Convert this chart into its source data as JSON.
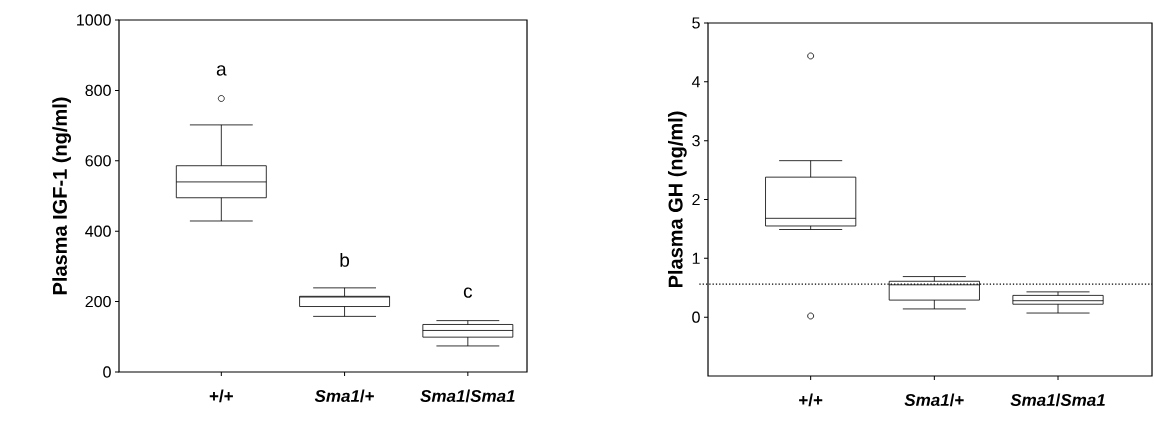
{
  "chart_data": [
    {
      "type": "box",
      "ylabel": "Plasma IGF-1 (ng/ml)",
      "categories": [
        "+/+",
        "*Sma1*/+",
        "*Sma1*/*Sma1*"
      ],
      "boxes": [
        {
          "low": 429,
          "q1": 495,
          "median": 540,
          "q3": 586,
          "high": 702,
          "outliers": [
            777
          ]
        },
        {
          "low": 158,
          "q1": 186,
          "median": 213,
          "q3": 215,
          "high": 239
        },
        {
          "low": 74,
          "q1": 99,
          "median": 118,
          "q3": 135,
          "high": 146
        }
      ],
      "ylim": [
        0,
        1000
      ],
      "yticks": [
        0,
        200,
        400,
        600,
        800,
        1000
      ],
      "annotations": [
        "a",
        "b",
        "c"
      ]
    },
    {
      "type": "box",
      "ylabel": "Plasma GH (ng/ml)",
      "categories": [
        "+/+",
        "*Sma1*/+",
        "*Sma1*/*Sma1*"
      ],
      "boxes": [
        {
          "low": 1.49,
          "q1": 1.55,
          "median": 1.68,
          "q3": 2.38,
          "high": 2.66,
          "outliers": [
            4.44,
            0.02
          ]
        },
        {
          "low": 0.14,
          "q1": 0.29,
          "median": 0.55,
          "q3": 0.61,
          "high": 0.69
        },
        {
          "low": 0.07,
          "q1": 0.22,
          "median": 0.28,
          "q3": 0.37,
          "high": 0.43
        }
      ],
      "ylim": [
        -1,
        5
      ],
      "yticks": [
        0,
        1,
        2,
        3,
        4,
        5
      ],
      "ref_lines": [
        {
          "axis": "y",
          "value": 0.56,
          "line_style": "dotted"
        }
      ]
    }
  ]
}
